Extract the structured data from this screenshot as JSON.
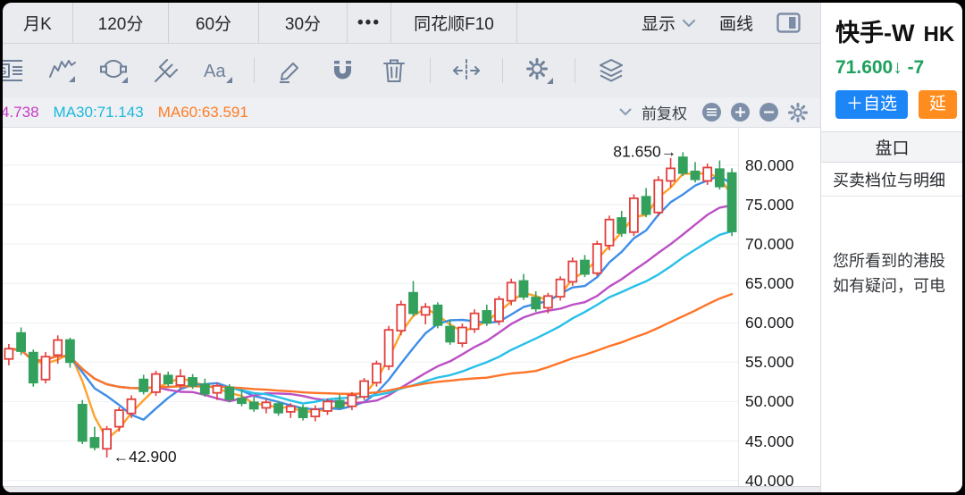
{
  "tabbar": {
    "tabs": [
      {
        "label": "月K"
      },
      {
        "label": "120分"
      },
      {
        "label": "60分"
      },
      {
        "label": "30分"
      },
      {
        "label": "•••"
      },
      {
        "label": "同花顺F10"
      }
    ],
    "display_label": "显示",
    "drawline_label": "画线"
  },
  "toolbar": {
    "icons": [
      "gallery-lines-icon",
      "trendline-icon",
      "ellipse-tool-icon",
      "pitchfork-icon",
      "text-tool-icon",
      "pencil-icon",
      "magnet-icon",
      "trash-icon",
      "horizontal-expand-icon",
      "gear-icon",
      "layers-icon"
    ]
  },
  "indicator_bar": {
    "ma_labels": [
      {
        "text": "4.738",
        "color": "#c63ac6"
      },
      {
        "text": "MA30:71.143",
        "color": "#1cb8dd"
      },
      {
        "text": "MA60:63.591",
        "color": "#ff7d26"
      }
    ],
    "adjust_label": "前复权",
    "buttons": [
      "indicator-list-button",
      "zoom-in-button",
      "zoom-out-button",
      "chart-settings-button"
    ]
  },
  "quote_panel": {
    "title": "快手-W",
    "title_suffix": "HK",
    "price_line": "71.600↓ -7",
    "price_color": "#1ea05e",
    "watchlist_button": "＋自选",
    "watchlist_color": "#1d86f7",
    "badge": "延",
    "badge_color": "#ff8c1e",
    "pankou_label": "盘口",
    "detail_label": "买卖档位与明细",
    "notice_lines": [
      "您所看到的港股",
      "如有疑问，可电"
    ]
  },
  "chart_data": {
    "type": "candlestick",
    "symbol": "快手-W",
    "last_price": 71.6,
    "high_label": "81.650",
    "low_label": "42.900",
    "y_ticks": [
      80,
      75,
      70,
      65,
      60,
      55,
      50,
      45,
      40
    ],
    "y_tick_labels": [
      "80.000",
      "75.000",
      "70.000",
      "65.000",
      "60.000",
      "55.000",
      "50.000",
      "45.000",
      "40.000"
    ],
    "y_range": [
      39.16,
      84.75
    ],
    "grid": true,
    "colors": {
      "up": "#e2403e",
      "down": "#33a05c",
      "grid": "#eef0f2",
      "annotation": "#17191c"
    },
    "candles": [
      [
        55.4,
        57.3,
        54.6,
        56.7
      ],
      [
        58.7,
        59.4,
        55.9,
        56.4
      ],
      [
        56.2,
        56.6,
        51.9,
        52.4
      ],
      [
        52.8,
        56.3,
        52.3,
        55.7
      ],
      [
        55.9,
        58.4,
        54.8,
        57.8
      ],
      [
        57.8,
        58.1,
        54.3,
        55.0
      ],
      [
        49.6,
        50.2,
        44.6,
        45.0
      ],
      [
        45.4,
        46.8,
        43.8,
        44.2
      ],
      [
        44.0,
        46.9,
        42.9,
        46.5
      ],
      [
        46.8,
        49.3,
        46.2,
        48.9
      ],
      [
        48.5,
        50.8,
        47.9,
        50.3
      ],
      [
        52.8,
        53.4,
        50.9,
        51.3
      ],
      [
        51.2,
        53.9,
        50.7,
        53.5
      ],
      [
        53.3,
        53.8,
        51.9,
        52.3
      ],
      [
        52.1,
        54.1,
        51.5,
        53.2
      ],
      [
        53.0,
        53.5,
        51.6,
        52.0
      ],
      [
        52.2,
        52.9,
        50.6,
        51.0
      ],
      [
        51.1,
        52.4,
        50.2,
        52.0
      ],
      [
        51.8,
        52.2,
        49.9,
        50.3
      ],
      [
        50.4,
        51.5,
        49.4,
        49.8
      ],
      [
        49.9,
        50.6,
        48.7,
        49.1
      ],
      [
        49.2,
        50.3,
        48.5,
        49.9
      ],
      [
        49.7,
        50.1,
        48.2,
        48.6
      ],
      [
        48.7,
        49.8,
        47.9,
        49.4
      ],
      [
        49.2,
        49.6,
        47.6,
        48.0
      ],
      [
        48.1,
        49.5,
        47.5,
        49.0
      ],
      [
        48.8,
        50.4,
        48.3,
        50.0
      ],
      [
        50.1,
        50.9,
        48.9,
        49.3
      ],
      [
        49.4,
        51.2,
        48.9,
        50.8
      ],
      [
        50.6,
        53.0,
        50.2,
        52.6
      ],
      [
        52.4,
        55.2,
        51.9,
        54.8
      ],
      [
        54.5,
        59.6,
        54.0,
        59.1
      ],
      [
        59.0,
        62.8,
        58.4,
        62.3
      ],
      [
        63.8,
        65.3,
        60.8,
        61.2
      ],
      [
        61.0,
        62.5,
        59.8,
        62.0
      ],
      [
        62.2,
        62.6,
        59.3,
        59.7
      ],
      [
        59.5,
        60.4,
        57.2,
        57.6
      ],
      [
        57.4,
        59.9,
        56.9,
        59.4
      ],
      [
        59.2,
        61.7,
        58.7,
        61.2
      ],
      [
        61.5,
        62.3,
        59.6,
        60.0
      ],
      [
        60.2,
        63.4,
        59.7,
        63.0
      ],
      [
        62.8,
        65.6,
        62.2,
        65.1
      ],
      [
        65.3,
        66.2,
        62.9,
        63.3
      ],
      [
        63.2,
        64.0,
        61.4,
        61.8
      ],
      [
        61.9,
        63.8,
        61.2,
        63.4
      ],
      [
        63.3,
        65.9,
        62.8,
        65.5
      ],
      [
        65.2,
        68.3,
        64.7,
        67.8
      ],
      [
        67.9,
        68.6,
        65.8,
        66.2
      ],
      [
        66.3,
        70.4,
        65.9,
        70.0
      ],
      [
        69.8,
        73.6,
        69.2,
        73.1
      ],
      [
        73.3,
        74.2,
        70.9,
        71.4
      ],
      [
        71.5,
        76.3,
        71.0,
        75.8
      ],
      [
        76.0,
        77.1,
        73.4,
        73.8
      ],
      [
        74.0,
        78.6,
        73.5,
        78.1
      ],
      [
        78.0,
        80.9,
        77.2,
        79.6
      ],
      [
        81.0,
        81.65,
        78.6,
        79.0
      ],
      [
        79.2,
        80.4,
        77.8,
        78.2
      ],
      [
        78.0,
        80.2,
        77.5,
        79.7
      ],
      [
        79.5,
        80.6,
        76.9,
        77.3
      ],
      [
        79.0,
        79.6,
        71.0,
        71.6
      ]
    ],
    "moving_averages": [
      {
        "name": "MA5",
        "window": 3,
        "color": "#ffa22b"
      },
      {
        "name": "MA10",
        "window": 6,
        "color": "#3e8ee8"
      },
      {
        "name": "MA20",
        "window": 13,
        "color": "#bb4fc4",
        "value_label": "4.738"
      },
      {
        "name": "MA30",
        "window": 19,
        "color": "#27c0e8",
        "value_label": "71.143"
      },
      {
        "name": "MA60",
        "window": 38,
        "color": "#ff7428",
        "value_label": "63.591"
      }
    ],
    "annotations": [
      {
        "text": "81.650→",
        "candle_index": 55,
        "price": 81.65,
        "side": "left"
      },
      {
        "text": "←42.900",
        "candle_index": 8,
        "price": 42.9,
        "side": "right"
      }
    ],
    "legend_position": "none"
  }
}
